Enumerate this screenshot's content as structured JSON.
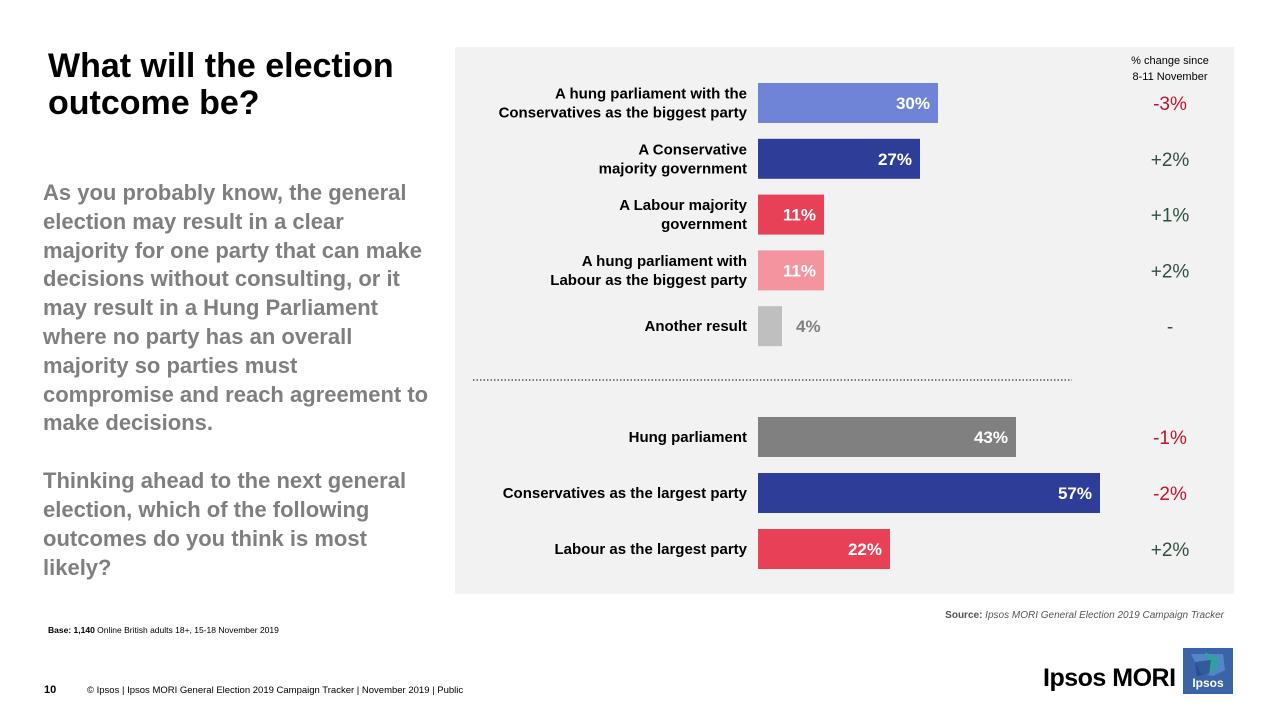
{
  "slide": {
    "title": "What will the election outcome be?",
    "question_p1": "As you probably know, the general election may result in a clear majority for one party that can make decisions without consulting, or it may result in a Hung Parliament where no party has an overall majority so parties must compromise and reach agreement to make decisions.",
    "question_p2": "Thinking ahead to the next general election, which of the following outcomes do you think is most likely?",
    "base_label": "Base:",
    "base_n": "1,140",
    "base_rest": " Online British adults 18+,  15-18 November 2019",
    "source_label": "Source:",
    "source_text": " Ipsos MORI General Election 2019 Campaign Tracker",
    "page_number": "10",
    "footer": "© Ipsos | Ipsos MORI  General Election 2019 Campaign Tracker | November 2019 | Public",
    "brand": "Ipsos MORI",
    "logo_text": "Ipsos"
  },
  "chart_data": {
    "type": "bar",
    "orientation": "horizontal",
    "change_header_line1": "% change since",
    "change_header_line2": "8-11 November",
    "groups": [
      {
        "bars": [
          {
            "label_lines": [
              "A hung parliament with the",
              "Conservatives as the biggest party"
            ],
            "value": 30,
            "value_label": "30%",
            "change": "-3%",
            "color": "#6f84d6",
            "label_inside": true,
            "change_color": "#c0142c"
          },
          {
            "label_lines": [
              "A Conservative",
              "majority government"
            ],
            "value": 27,
            "value_label": "27%",
            "change": "+2%",
            "color": "#2e3d98",
            "label_inside": true,
            "change_color": "#2f4f3f"
          },
          {
            "label_lines": [
              "A Labour majority",
              "government"
            ],
            "value": 11,
            "value_label": "11%",
            "change": "+1%",
            "color": "#e84056",
            "label_inside": true,
            "change_color": "#2f4f3f"
          },
          {
            "label_lines": [
              "A hung parliament with",
              "Labour as the biggest party"
            ],
            "value": 11,
            "value_label": "11%",
            "change": "+2%",
            "color": "#f4949f",
            "label_inside": true,
            "change_color": "#2f4f3f"
          },
          {
            "label_lines": [
              "Another result"
            ],
            "value": 4,
            "value_label": "4%",
            "change": "-",
            "color": "#bfbfbf",
            "label_inside": false,
            "change_color": "#2f4f3f"
          }
        ]
      },
      {
        "bars": [
          {
            "label_lines": [
              "Hung parliament"
            ],
            "value": 43,
            "value_label": "43%",
            "change": "-1%",
            "color": "#808080",
            "label_inside": true,
            "change_color": "#c0142c"
          },
          {
            "label_lines": [
              "Conservatives as the largest party"
            ],
            "value": 57,
            "value_label": "57%",
            "change": "-2%",
            "color": "#2e3d98",
            "label_inside": true,
            "change_color": "#c0142c"
          },
          {
            "label_lines": [
              "Labour as the largest party"
            ],
            "value": 22,
            "value_label": "22%",
            "change": "+2%",
            "color": "#e84056",
            "label_inside": true,
            "change_color": "#2f4f3f"
          }
        ]
      }
    ],
    "xlim": [
      0,
      100
    ],
    "gridlines": false,
    "legend": "none"
  }
}
